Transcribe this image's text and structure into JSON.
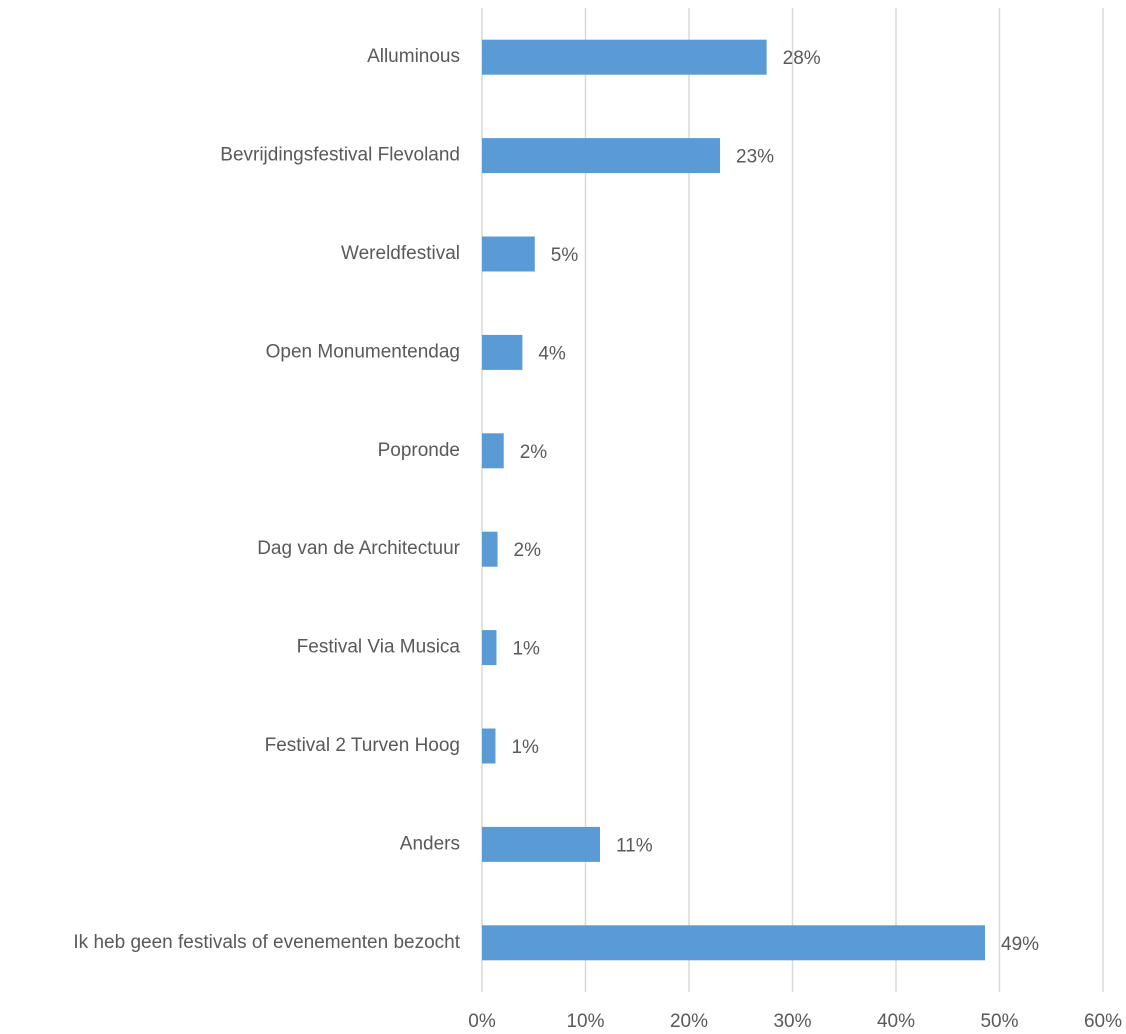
{
  "chart_data": {
    "type": "hbar",
    "categories": [
      "Alluminous",
      "Bevrijdingsfestival Flevoland",
      "Wereldfestival",
      "Open Monumentendag",
      "Popronde",
      "Dag van de Architectuur",
      "Festival Via Musica",
      "Festival 2 Turven Hoog",
      "Anders",
      "Ik heb geen festivals of evenementen bezocht"
    ],
    "values": [
      27.5,
      23.0,
      5.1,
      3.9,
      2.1,
      1.5,
      1.4,
      1.3,
      11.4,
      48.6
    ],
    "value_labels": [
      "28%",
      "23%",
      "5%",
      "4%",
      "2%",
      "2%",
      "1%",
      "1%",
      "11%",
      "49%"
    ],
    "color": "#5b9bd5",
    "xlim": [
      0,
      60
    ],
    "xticks": [
      {
        "value": 0,
        "label": "0%"
      },
      {
        "value": 10,
        "label": "10%"
      },
      {
        "value": 20,
        "label": "20%"
      },
      {
        "value": 30,
        "label": "30%"
      },
      {
        "value": 40,
        "label": "40%"
      },
      {
        "value": 50,
        "label": "50%"
      },
      {
        "value": 60,
        "label": "60%"
      }
    ],
    "grid": true
  }
}
